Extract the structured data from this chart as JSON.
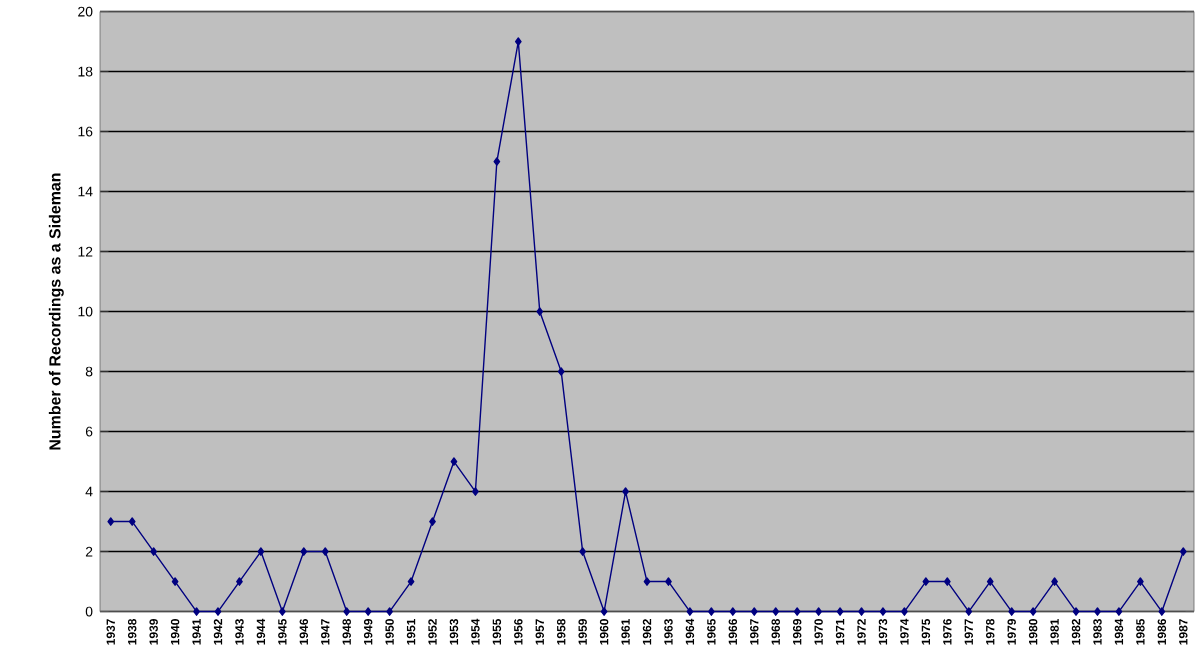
{
  "chart_data": {
    "type": "line",
    "ylabel": "Number of Recordings as a Sideman",
    "categories": [
      "1937",
      "1938",
      "1939",
      "1940",
      "1941",
      "1942",
      "1943",
      "1944",
      "1945",
      "1946",
      "1947",
      "1948",
      "1949",
      "1950",
      "1951",
      "1952",
      "1953",
      "1954",
      "1955",
      "1956",
      "1957",
      "1958",
      "1959",
      "1960",
      "1961",
      "1962",
      "1963",
      "1964",
      "1965",
      "1966",
      "1967",
      "1968",
      "1969",
      "1970",
      "1971",
      "1972",
      "1973",
      "1974",
      "1975",
      "1976",
      "1977",
      "1978",
      "1979",
      "1980",
      "1981",
      "1982",
      "1983",
      "1984",
      "1985",
      "1986",
      "1987"
    ],
    "series": [
      {
        "color": "#000080",
        "values": [
          3,
          3,
          2,
          1,
          0,
          0,
          1,
          2,
          0,
          2,
          2,
          0,
          0,
          0,
          1,
          3,
          5,
          4,
          15,
          19,
          10,
          8,
          2,
          0,
          4,
          1,
          1,
          0,
          0,
          0,
          0,
          0,
          0,
          0,
          0,
          0,
          0,
          0,
          1,
          1,
          0,
          1,
          0,
          0,
          1,
          0,
          0,
          0,
          1,
          0,
          2
        ]
      }
    ],
    "ylim": [
      0,
      20
    ],
    "yticks": [
      0,
      2,
      4,
      6,
      8,
      10,
      12,
      14,
      16,
      18,
      20
    ],
    "grid": "y",
    "marker": "diamond",
    "line_style": "solid"
  }
}
